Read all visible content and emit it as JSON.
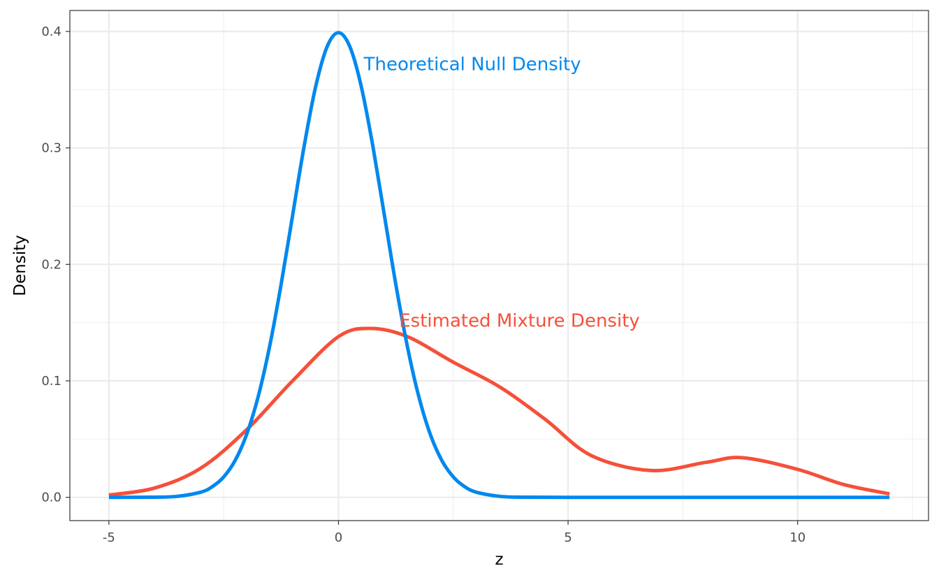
{
  "chart_data": {
    "type": "line",
    "title": "",
    "xlabel": "z",
    "ylabel": "Density",
    "xlim": [
      -5.85,
      12.85
    ],
    "ylim": [
      -0.02,
      0.418
    ],
    "x_ticks": [
      -5,
      0,
      5,
      10
    ],
    "x_tick_labels": [
      "-5",
      "0",
      "5",
      "10"
    ],
    "y_ticks": [
      0.0,
      0.1,
      0.2,
      0.3,
      0.4
    ],
    "y_tick_labels": [
      "0.0",
      "0.1",
      "0.2",
      "0.3",
      "0.4"
    ],
    "grid": true,
    "legend": "none",
    "series": [
      {
        "color": "#0088ee",
        "x": [
          -5,
          -4,
          -3.5,
          -3,
          -2.75,
          -2.5,
          -2.25,
          -2,
          -1.75,
          -1.5,
          -1.25,
          -1,
          -0.75,
          -0.5,
          -0.25,
          0,
          0.25,
          0.5,
          0.75,
          1,
          1.25,
          1.5,
          1.75,
          2,
          2.25,
          2.5,
          2.75,
          3,
          3.5,
          4,
          5,
          6,
          8,
          10,
          12
        ],
        "values": [
          0.0,
          0.0001,
          0.0009,
          0.0044,
          0.0091,
          0.0175,
          0.0317,
          0.054,
          0.0863,
          0.1295,
          0.1826,
          0.242,
          0.3011,
          0.3521,
          0.3867,
          0.3989,
          0.3867,
          0.3521,
          0.3011,
          0.242,
          0.1826,
          0.1295,
          0.0863,
          0.054,
          0.0317,
          0.0175,
          0.0091,
          0.0044,
          0.0009,
          0.0001,
          0.0,
          0.0,
          0.0,
          0.0,
          0.0
        ]
      },
      {
        "color": "#f5503a",
        "x": [
          -5,
          -4,
          -3,
          -2,
          -1,
          0,
          0.7,
          1.5,
          2.5,
          3.5,
          4.5,
          5.5,
          6.8,
          8,
          8.8,
          10,
          11,
          12
        ],
        "values": [
          0.002,
          0.008,
          0.025,
          0.058,
          0.1,
          0.138,
          0.145,
          0.138,
          0.116,
          0.095,
          0.067,
          0.036,
          0.023,
          0.03,
          0.034,
          0.024,
          0.011,
          0.003
        ]
      }
    ],
    "annotations": [
      {
        "text": "Theoretical Null Density",
        "x": 0.55,
        "y": 0.372,
        "color": "#0088ee"
      },
      {
        "text": "Estimated Mixture Density",
        "x": 1.32,
        "y": 0.152,
        "color": "#f5503a"
      }
    ]
  }
}
